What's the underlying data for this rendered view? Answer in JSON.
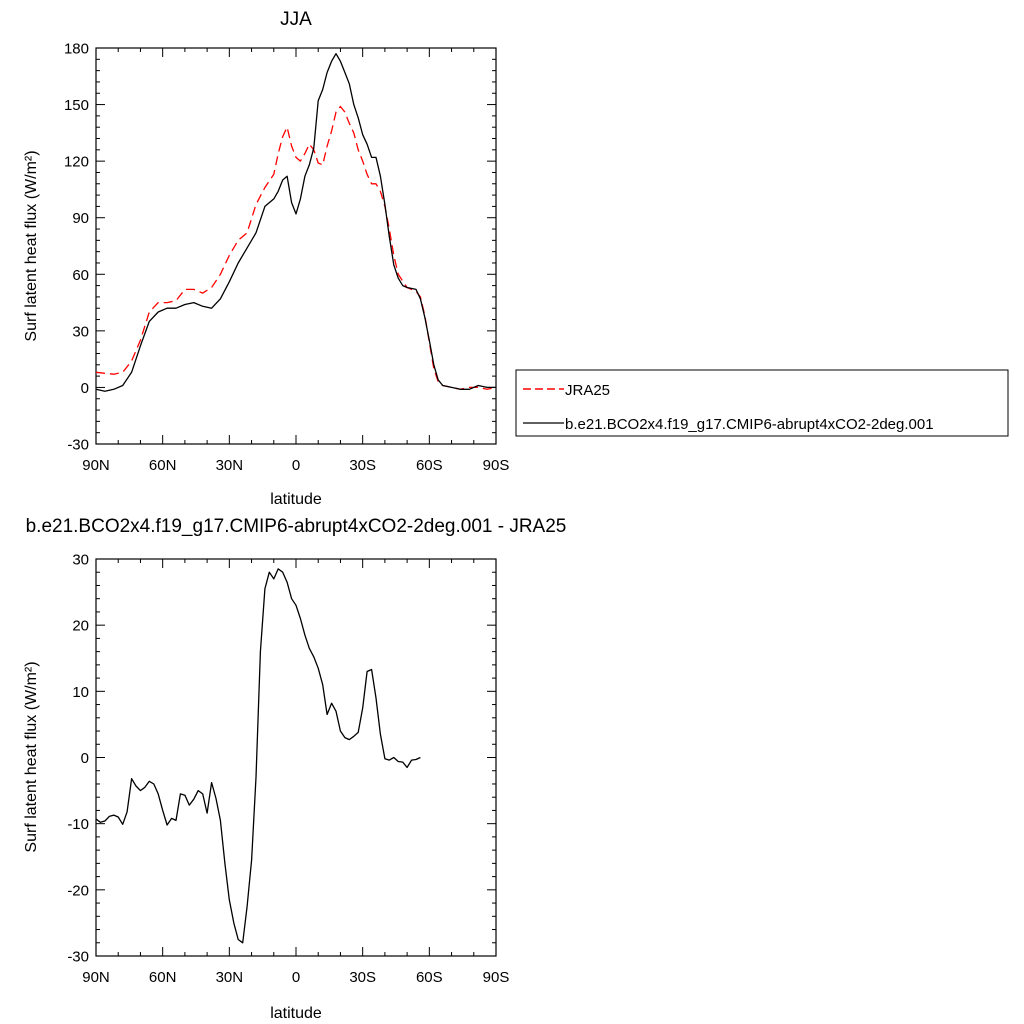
{
  "chart_data": [
    {
      "type": "line",
      "title": "JJA",
      "xlabel": "latitude",
      "ylabel": "Surf latent heat flux (W/m²)",
      "ylim": [
        -30,
        180
      ],
      "xlim": [
        -90,
        90
      ],
      "x_ticks": [
        -90,
        -60,
        -30,
        0,
        30,
        60,
        90
      ],
      "x_tick_labels": [
        "90N",
        "60N",
        "30N",
        "0",
        "30S",
        "60S",
        "90S"
      ],
      "y_ticks": [
        -30,
        0,
        30,
        60,
        90,
        120,
        150,
        180
      ],
      "y_tick_labels": [
        "-30",
        "0",
        "30",
        "60",
        "90",
        "120",
        "150",
        "180"
      ],
      "grid": false,
      "legend_placement": "right",
      "series": [
        {
          "name": "JRA25",
          "color": "#ff0000",
          "dash": "dashed",
          "points": [
            [
              -90,
              8
            ],
            [
              -86,
              7.5
            ],
            [
              -82,
              7
            ],
            [
              -78,
              8
            ],
            [
              -74,
              14
            ],
            [
              -70,
              25
            ],
            [
              -66,
              40
            ],
            [
              -62,
              45
            ],
            [
              -58,
              45
            ],
            [
              -54,
              46
            ],
            [
              -50,
              52
            ],
            [
              -46,
              52
            ],
            [
              -42,
              50
            ],
            [
              -38,
              53
            ],
            [
              -34,
              60
            ],
            [
              -30,
              70
            ],
            [
              -26,
              78
            ],
            [
              -22,
              82
            ],
            [
              -18,
              97
            ],
            [
              -14,
              106
            ],
            [
              -10,
              113
            ],
            [
              -8,
              124
            ],
            [
              -6,
              133
            ],
            [
              -4,
              138
            ],
            [
              -2,
              128
            ],
            [
              0,
              122
            ],
            [
              2,
              120
            ],
            [
              4,
              124
            ],
            [
              6,
              129
            ],
            [
              8,
              126
            ],
            [
              10,
              119
            ],
            [
              12,
              118
            ],
            [
              14,
              128
            ],
            [
              16,
              136
            ],
            [
              18,
              146
            ],
            [
              20,
              149
            ],
            [
              22,
              146
            ],
            [
              24,
              140
            ],
            [
              26,
              135
            ],
            [
              28,
              126
            ],
            [
              30,
              120
            ],
            [
              32,
              113
            ],
            [
              34,
              108
            ],
            [
              36,
              108
            ],
            [
              38,
              104
            ],
            [
              40,
              96
            ],
            [
              42,
              84
            ],
            [
              44,
              70
            ],
            [
              46,
              60
            ],
            [
              50,
              53
            ],
            [
              54,
              51
            ],
            [
              56,
              48
            ],
            [
              58,
              38
            ],
            [
              60,
              24
            ],
            [
              62,
              10
            ],
            [
              64,
              3
            ],
            [
              66,
              1
            ],
            [
              70,
              0
            ],
            [
              74,
              -1
            ],
            [
              78,
              0
            ],
            [
              82,
              0
            ],
            [
              86,
              -1
            ],
            [
              90,
              0
            ]
          ]
        },
        {
          "name": "b.e21.BCO2x4.f19_g17.CMIP6-abrupt4xCO2-2deg.001",
          "color": "#000000",
          "dash": "solid",
          "points": [
            [
              -90,
              -1
            ],
            [
              -86,
              -2
            ],
            [
              -82,
              -1
            ],
            [
              -78,
              1
            ],
            [
              -74,
              8
            ],
            [
              -70,
              22
            ],
            [
              -66,
              35
            ],
            [
              -62,
              40
            ],
            [
              -58,
              42
            ],
            [
              -54,
              42
            ],
            [
              -50,
              44
            ],
            [
              -46,
              45
            ],
            [
              -42,
              43
            ],
            [
              -38,
              42
            ],
            [
              -34,
              47
            ],
            [
              -30,
              56
            ],
            [
              -26,
              66
            ],
            [
              -22,
              74
            ],
            [
              -18,
              82
            ],
            [
              -14,
              96
            ],
            [
              -10,
              100
            ],
            [
              -8,
              104
            ],
            [
              -6,
              110
            ],
            [
              -4,
              112
            ],
            [
              -2,
              98
            ],
            [
              0,
              92
            ],
            [
              2,
              100
            ],
            [
              4,
              112
            ],
            [
              6,
              118
            ],
            [
              8,
              127
            ],
            [
              10,
              152
            ],
            [
              12,
              158
            ],
            [
              14,
              167
            ],
            [
              16,
              173
            ],
            [
              18,
              177
            ],
            [
              20,
              173
            ],
            [
              22,
              167
            ],
            [
              24,
              161
            ],
            [
              26,
              150
            ],
            [
              28,
              143
            ],
            [
              30,
              134
            ],
            [
              32,
              129
            ],
            [
              34,
              122
            ],
            [
              36,
              122
            ],
            [
              38,
              112
            ],
            [
              40,
              97
            ],
            [
              42,
              80
            ],
            [
              44,
              65
            ],
            [
              46,
              58
            ],
            [
              48,
              54
            ],
            [
              50,
              53
            ],
            [
              54,
              52
            ],
            [
              56,
              47
            ],
            [
              58,
              37
            ],
            [
              60,
              25
            ],
            [
              62,
              12
            ],
            [
              64,
              4
            ],
            [
              66,
              1
            ],
            [
              70,
              0
            ],
            [
              74,
              -1
            ],
            [
              78,
              -1
            ],
            [
              82,
              1
            ],
            [
              86,
              0
            ],
            [
              90,
              0
            ]
          ]
        }
      ]
    },
    {
      "type": "line",
      "title": "b.e21.BCO2x4.f19_g17.CMIP6-abrupt4xCO2-2deg.001 - JRA25",
      "xlabel": "latitude",
      "ylabel": "Surf latent heat flux (W/m²)",
      "ylim": [
        -30,
        30
      ],
      "xlim": [
        -90,
        90
      ],
      "x_ticks": [
        -90,
        -60,
        -30,
        0,
        30,
        60,
        90
      ],
      "x_tick_labels": [
        "90N",
        "60N",
        "30N",
        "0",
        "30S",
        "60S",
        "90S"
      ],
      "y_ticks": [
        -30,
        -20,
        -10,
        0,
        10,
        20,
        30
      ],
      "y_tick_labels": [
        "-30",
        "-20",
        "-10",
        "0",
        "10",
        "20",
        "30"
      ],
      "grid": false,
      "series": [
        {
          "color": "#000000",
          "dash": "solid",
          "points": [
            [
              -90,
              -9.3
            ],
            [
              -88,
              -9.8
            ],
            [
              -86,
              -9.6
            ],
            [
              -84,
              -8.9
            ],
            [
              -82,
              -8.7
            ],
            [
              -80,
              -9.0
            ],
            [
              -78,
              -10.1
            ],
            [
              -76,
              -8.2
            ],
            [
              -74,
              -3.2
            ],
            [
              -72,
              -4.3
            ],
            [
              -70,
              -5
            ],
            [
              -68,
              -4.5
            ],
            [
              -66,
              -3.6
            ],
            [
              -64,
              -4.0
            ],
            [
              -62,
              -5.5
            ],
            [
              -60,
              -8
            ],
            [
              -58,
              -10.2
            ],
            [
              -56,
              -9.2
            ],
            [
              -54,
              -9.5
            ],
            [
              -52,
              -5.5
            ],
            [
              -50,
              -5.7
            ],
            [
              -48,
              -7.2
            ],
            [
              -46,
              -6.3
            ],
            [
              -44,
              -5
            ],
            [
              -42,
              -5.5
            ],
            [
              -40,
              -8.4
            ],
            [
              -38,
              -3.8
            ],
            [
              -36,
              -6.2
            ],
            [
              -34,
              -9.5
            ],
            [
              -32,
              -16
            ],
            [
              -30,
              -21.5
            ],
            [
              -28,
              -25
            ],
            [
              -26,
              -27.5
            ],
            [
              -24,
              -28
            ],
            [
              -22,
              -22.5
            ],
            [
              -20,
              -15.5
            ],
            [
              -18,
              -3
            ],
            [
              -16,
              16
            ],
            [
              -14,
              25.5
            ],
            [
              -12,
              28
            ],
            [
              -10,
              27
            ],
            [
              -8,
              28.5
            ],
            [
              -6,
              28
            ],
            [
              -4,
              26.5
            ],
            [
              -2,
              24
            ],
            [
              0,
              23
            ],
            [
              2,
              21
            ],
            [
              4,
              18.5
            ],
            [
              6,
              16.5
            ],
            [
              8,
              15.2
            ],
            [
              10,
              13.5
            ],
            [
              12,
              11
            ],
            [
              14,
              6.5
            ],
            [
              16,
              8.2
            ],
            [
              18,
              7
            ],
            [
              20,
              4
            ],
            [
              22,
              3
            ],
            [
              24,
              2.7
            ],
            [
              26,
              3.2
            ],
            [
              28,
              3.8
            ],
            [
              30,
              7.5
            ],
            [
              32,
              13
            ],
            [
              34,
              13.3
            ],
            [
              36,
              9
            ],
            [
              38,
              3.5
            ],
            [
              40,
              -0.2
            ],
            [
              42,
              -0.4
            ],
            [
              44,
              0
            ],
            [
              46,
              -0.6
            ],
            [
              48,
              -0.7
            ],
            [
              50,
              -1.5
            ],
            [
              52,
              -0.4
            ],
            [
              54,
              -0.3
            ],
            [
              56,
              0
            ]
          ]
        }
      ]
    }
  ]
}
